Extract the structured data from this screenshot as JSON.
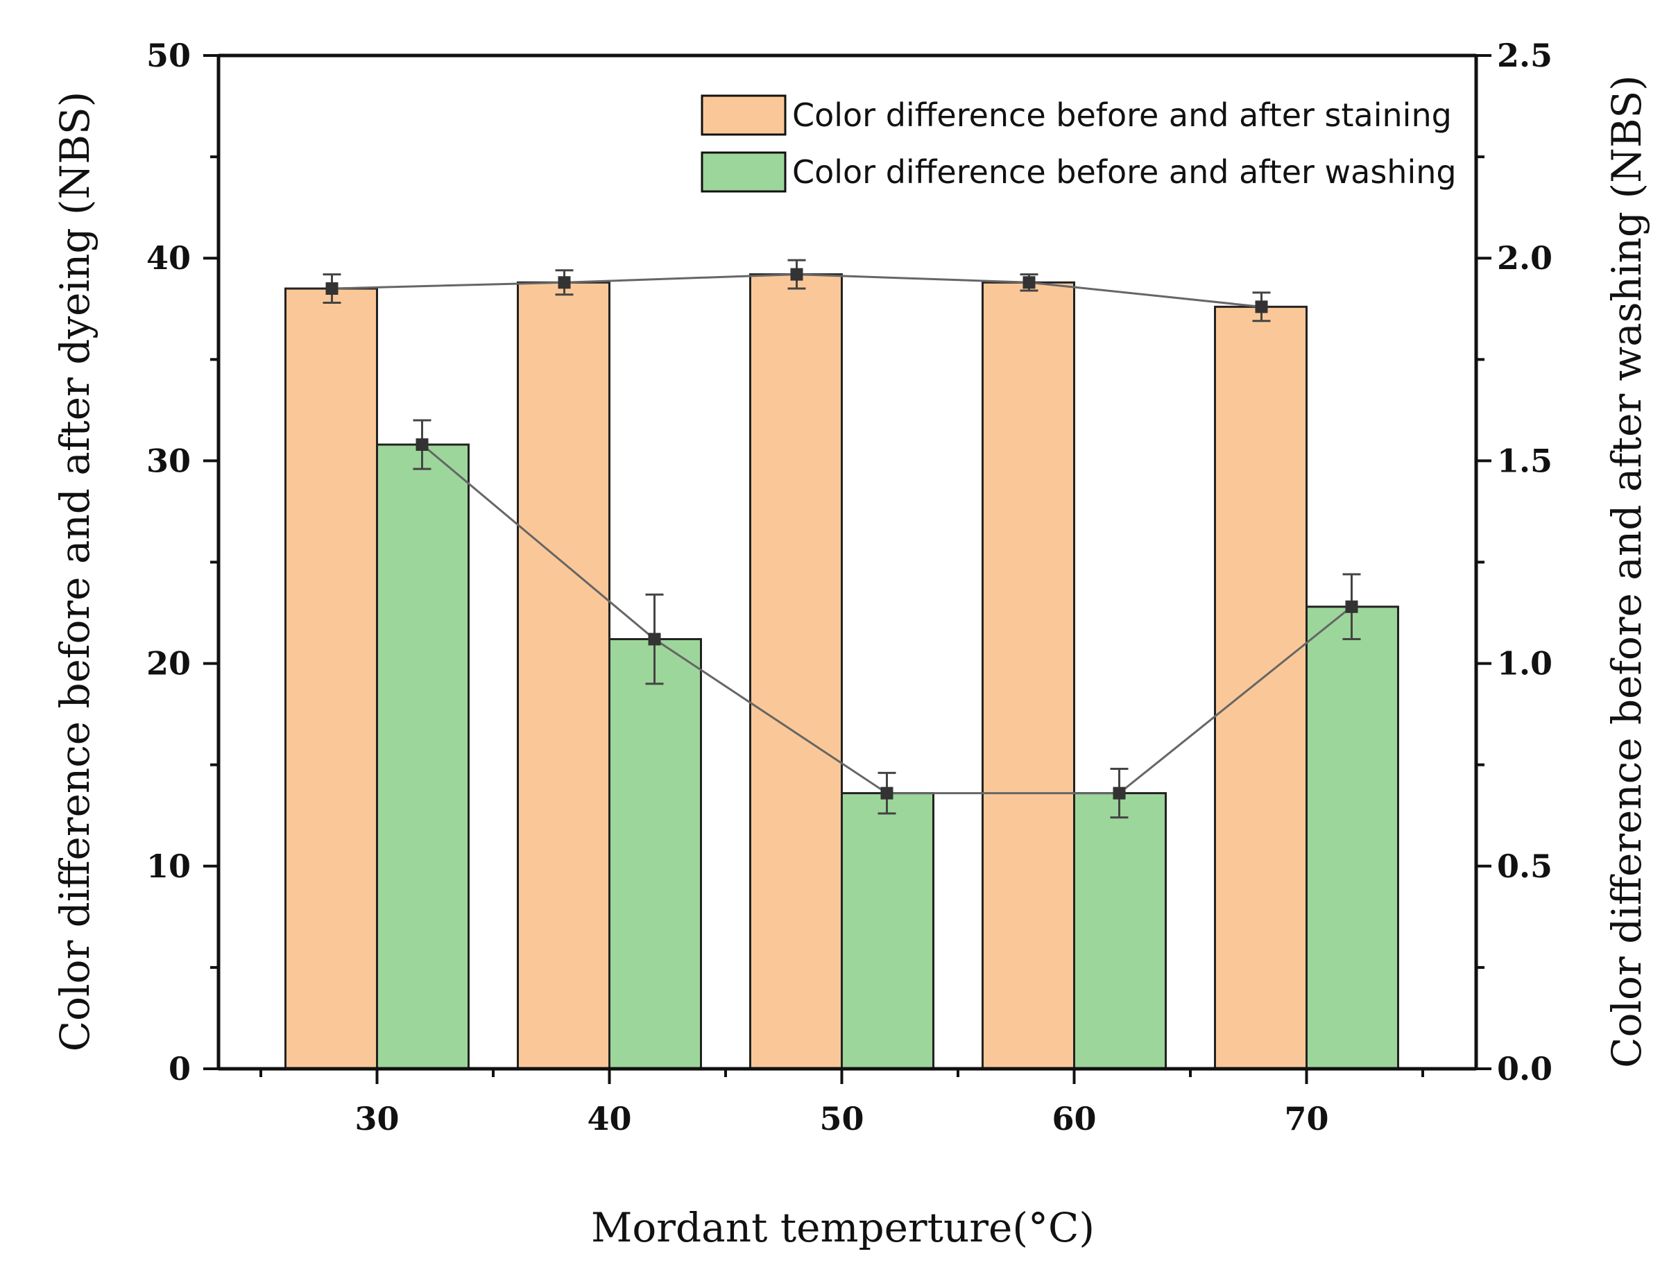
{
  "chart_data": {
    "type": "bar",
    "categories": [
      "30",
      "40",
      "50",
      "60",
      "70"
    ],
    "xlabel": "Mordant temperture(°C)",
    "ylabel_left": "Color difference before and after dyeing (NBS)",
    "ylabel_right": "Color difference before and after washing (NBS)",
    "ylim_left": [
      0,
      50
    ],
    "ylim_right": [
      0,
      2.5
    ],
    "yticks_left": [
      "0",
      "10",
      "20",
      "30",
      "40",
      "50"
    ],
    "yticks_right": [
      "0.0",
      "0.5",
      "1.0",
      "1.5",
      "2.0",
      "2.5"
    ],
    "series": [
      {
        "name": "Color difference before and after staining",
        "axis": "left",
        "color": "#fac898",
        "values": [
          38.5,
          38.8,
          39.2,
          38.8,
          37.6
        ],
        "errors": [
          0.7,
          0.6,
          0.7,
          0.4,
          0.7
        ]
      },
      {
        "name": "Color difference before and after washing",
        "axis": "right",
        "color": "#9dd69b",
        "values": [
          1.54,
          1.06,
          0.68,
          0.68,
          1.14
        ],
        "errors": [
          0.06,
          0.11,
          0.05,
          0.06,
          0.08
        ]
      }
    ],
    "legend_position": "top-right",
    "line_color": "#666666"
  }
}
